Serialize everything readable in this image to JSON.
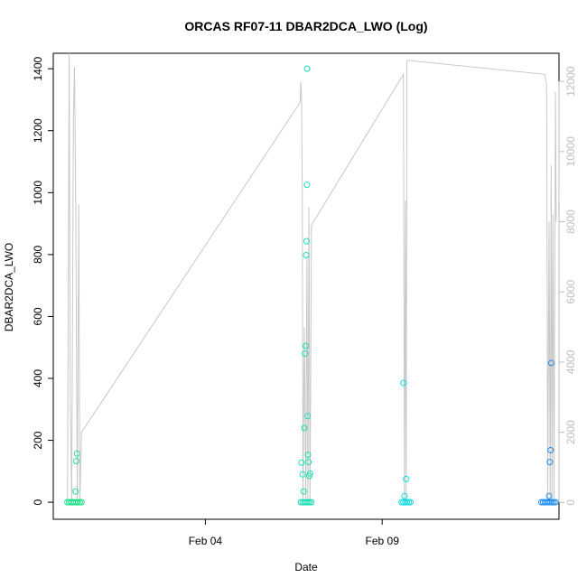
{
  "chart_data": {
    "type": "scatter",
    "title": "ORCAS RF07-11 DBAR2DCA_LWO (Log)",
    "xlabel": "Date",
    "ylabel": "DBAR2DCA_LWO",
    "x_ticks": [
      {
        "label": "Feb 04",
        "day": 4
      },
      {
        "label": "Feb 09",
        "day": 9
      }
    ],
    "x_range_days": [
      -0.3,
      14.0
    ],
    "ylim": [
      -55,
      1450
    ],
    "y_ticks": [
      0,
      200,
      400,
      600,
      800,
      1000,
      1200,
      1400
    ],
    "y2lim": [
      -480,
      12800
    ],
    "y2_ticks": [
      0,
      2000,
      4000,
      6000,
      8000,
      10000,
      12000
    ],
    "y2_color": "#bdbdbd",
    "secondary_line": {
      "color": "#c8c8c8",
      "points": [
        [
          0.1,
          0
        ],
        [
          0.15,
          12800
        ],
        [
          0.18,
          3000
        ],
        [
          0.22,
          0
        ],
        [
          0.27,
          11000
        ],
        [
          0.3,
          12400
        ],
        [
          0.33,
          9000
        ],
        [
          0.38,
          0
        ],
        [
          0.42,
          8500
        ],
        [
          0.45,
          0
        ],
        [
          0.5,
          2000
        ],
        [
          6.68,
          11400
        ],
        [
          6.7,
          12000
        ],
        [
          6.72,
          11600
        ],
        [
          6.74,
          9000
        ],
        [
          6.76,
          0
        ],
        [
          6.8,
          5000
        ],
        [
          6.84,
          0
        ],
        [
          6.87,
          7000
        ],
        [
          6.9,
          0
        ],
        [
          6.93,
          8400
        ],
        [
          6.96,
          0
        ],
        [
          7.0,
          7900
        ],
        [
          9.6,
          12200
        ],
        [
          9.63,
          0
        ],
        [
          9.66,
          8600
        ],
        [
          9.68,
          0
        ],
        [
          9.7,
          12600
        ],
        [
          13.6,
          12200
        ],
        [
          13.65,
          11900
        ],
        [
          13.68,
          0
        ],
        [
          13.72,
          8000
        ],
        [
          13.75,
          0
        ],
        [
          13.78,
          9600
        ],
        [
          13.8,
          0
        ],
        [
          13.83,
          8200
        ],
        [
          13.86,
          0
        ],
        [
          13.9,
          11700
        ],
        [
          13.92,
          8000
        ]
      ]
    },
    "series": [
      {
        "color": "#1fe08a",
        "points": [
          [
            0.1,
            0
          ],
          [
            0.15,
            0
          ],
          [
            0.2,
            0
          ],
          [
            0.25,
            0
          ],
          [
            0.3,
            0
          ],
          [
            0.35,
            0
          ],
          [
            0.4,
            0
          ],
          [
            0.45,
            0
          ],
          [
            0.5,
            0
          ],
          [
            0.33,
            35
          ],
          [
            0.35,
            133
          ],
          [
            0.37,
            157
          ]
        ]
      },
      {
        "color": "#19dfb5",
        "points": [
          [
            6.7,
            0
          ],
          [
            6.75,
            0
          ],
          [
            6.8,
            0
          ],
          [
            6.85,
            0
          ],
          [
            6.9,
            0
          ],
          [
            6.95,
            0
          ],
          [
            7.0,
            0
          ],
          [
            6.72,
            128
          ],
          [
            6.75,
            90
          ],
          [
            6.78,
            35
          ],
          [
            6.8,
            240
          ],
          [
            6.82,
            480
          ],
          [
            6.84,
            505
          ],
          [
            6.85,
            798
          ],
          [
            6.86,
            843
          ],
          [
            6.87,
            1025
          ],
          [
            6.88,
            1400
          ],
          [
            6.89,
            278
          ],
          [
            6.9,
            153
          ],
          [
            6.92,
            130
          ],
          [
            6.94,
            85
          ],
          [
            6.96,
            93
          ]
        ]
      },
      {
        "color": "#12dbe3",
        "points": [
          [
            9.55,
            0
          ],
          [
            9.6,
            0
          ],
          [
            9.65,
            0
          ],
          [
            9.7,
            0
          ],
          [
            9.75,
            0
          ],
          [
            9.8,
            0
          ],
          [
            9.6,
            385
          ],
          [
            9.63,
            20
          ],
          [
            9.68,
            75
          ]
        ]
      },
      {
        "color": "#1e8cf0",
        "points": [
          [
            13.5,
            0
          ],
          [
            13.55,
            0
          ],
          [
            13.6,
            0
          ],
          [
            13.65,
            0
          ],
          [
            13.7,
            0
          ],
          [
            13.75,
            0
          ],
          [
            13.8,
            0
          ],
          [
            13.85,
            0
          ],
          [
            13.9,
            0
          ],
          [
            13.72,
            20
          ],
          [
            13.74,
            130
          ],
          [
            13.76,
            168
          ],
          [
            13.78,
            450
          ]
        ]
      }
    ]
  }
}
